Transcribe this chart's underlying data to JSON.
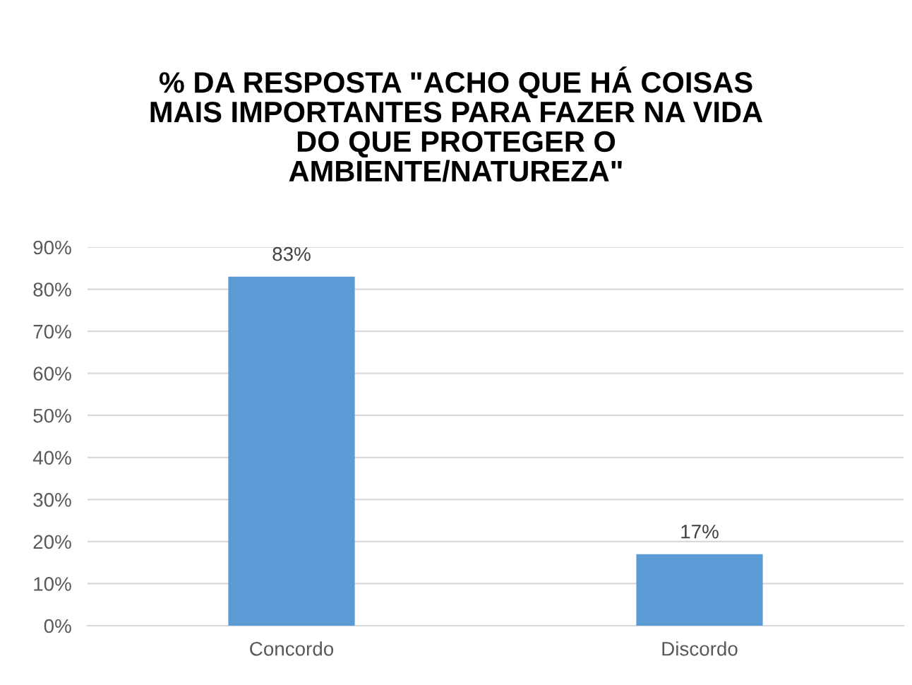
{
  "chart_data": {
    "type": "bar",
    "title": "% DA RESPOSTA \"ACHO QUE HÁ COISAS\nMAIS IMPORTANTES PARA FAZER NA VIDA\nDO QUE PROTEGER O\nAMBIENTE/NATUREZA\"",
    "categories": [
      "Concordo",
      "Discordo"
    ],
    "values": [
      83,
      17
    ],
    "value_labels": [
      "83%",
      "17%"
    ],
    "color": "#5b9bd5",
    "ylim": [
      0,
      90
    ],
    "yticks": [
      {
        "value": 0,
        "label": "0%"
      },
      {
        "value": 10,
        "label": "10%"
      },
      {
        "value": 20,
        "label": "20%"
      },
      {
        "value": 30,
        "label": "30%"
      },
      {
        "value": 40,
        "label": "40%"
      },
      {
        "value": 50,
        "label": "50%"
      },
      {
        "value": 60,
        "label": "60%"
      },
      {
        "value": 70,
        "label": "70%"
      },
      {
        "value": 80,
        "label": "80%"
      },
      {
        "value": 90,
        "label": "90%"
      }
    ],
    "grid": "y"
  }
}
